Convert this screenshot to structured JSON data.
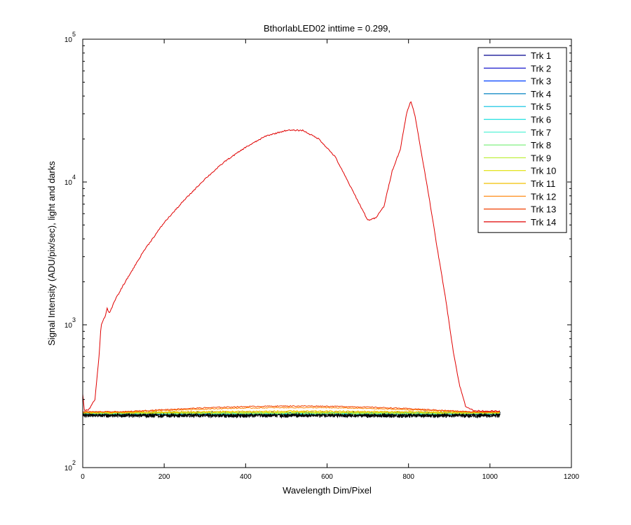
{
  "chart_data": {
    "type": "line",
    "title": "BthorlabLED02 inttime = 0.299,",
    "xlabel": "Wavelength Dim/Pixel",
    "ylabel": "Signal Intensity (ADU/pix/sec), light and darks",
    "xlim": [
      0,
      1200
    ],
    "ylim": [
      100,
      100000
    ],
    "yscale": "log",
    "grid": false,
    "legend_position": "top-right",
    "x_ticks": [
      0,
      200,
      400,
      600,
      800,
      1000,
      1200
    ],
    "x_tick_labels": [
      "0",
      "200",
      "400",
      "600",
      "800",
      "1000",
      "1200"
    ],
    "y_ticks": [
      {
        "value": 100,
        "base": "10",
        "exp": "2"
      },
      {
        "value": 1000,
        "base": "10",
        "exp": "3"
      },
      {
        "value": 10000,
        "base": "10",
        "exp": "4"
      },
      {
        "value": 100000,
        "base": "10",
        "exp": "5"
      }
    ],
    "series": [
      {
        "name": "Trk 1",
        "color": "#00008f",
        "baseline": 240,
        "bump": 0,
        "noise": 8
      },
      {
        "name": "Trk 2",
        "color": "#0000c8",
        "baseline": 240,
        "bump": 0,
        "noise": 8
      },
      {
        "name": "Trk 3",
        "color": "#0040ff",
        "baseline": 240,
        "bump": 0,
        "noise": 8
      },
      {
        "name": "Trk 4",
        "color": "#0080c0",
        "baseline": 240,
        "bump": 0,
        "noise": 8
      },
      {
        "name": "Trk 5",
        "color": "#00c0e0",
        "baseline": 240,
        "bump": 0,
        "noise": 8
      },
      {
        "name": "Trk 6",
        "color": "#20e0e0",
        "baseline": 240,
        "bump": 0,
        "noise": 8
      },
      {
        "name": "Trk 7",
        "color": "#40f0d0",
        "baseline": 240,
        "bump": 0,
        "noise": 8
      },
      {
        "name": "Trk 8",
        "color": "#80f080",
        "baseline": 240,
        "bump": 0,
        "noise": 8
      },
      {
        "name": "Trk 9",
        "color": "#c0f040",
        "baseline": 241,
        "bump": 0,
        "noise": 7
      },
      {
        "name": "Trk 10",
        "color": "#e0e000",
        "baseline": 242,
        "bump": 2,
        "noise": 6
      },
      {
        "name": "Trk 11",
        "color": "#f0c000",
        "baseline": 243,
        "bump": 5,
        "noise": 6
      },
      {
        "name": "Trk 12",
        "color": "#ff8000",
        "baseline": 245,
        "bump": 18,
        "noise": 4
      },
      {
        "name": "Trk 13",
        "color": "#f04000",
        "baseline": 246,
        "bump": 24,
        "noise": 4
      },
      {
        "name": "Trk 14",
        "color": "#e00000",
        "baseline": 248,
        "bump": 0,
        "noise": 3,
        "points": [
          [
            0,
            330
          ],
          [
            4,
            250
          ],
          [
            15,
            255
          ],
          [
            30,
            300
          ],
          [
            40,
            600
          ],
          [
            45,
            1000
          ],
          [
            55,
            1150
          ],
          [
            60,
            1300
          ],
          [
            65,
            1200
          ],
          [
            80,
            1500
          ],
          [
            100,
            1900
          ],
          [
            150,
            3300
          ],
          [
            200,
            5200
          ],
          [
            250,
            7500
          ],
          [
            300,
            10500
          ],
          [
            350,
            14000
          ],
          [
            400,
            17500
          ],
          [
            450,
            21000
          ],
          [
            500,
            23000
          ],
          [
            540,
            23000
          ],
          [
            580,
            20000
          ],
          [
            620,
            15000
          ],
          [
            660,
            9000
          ],
          [
            700,
            5400
          ],
          [
            720,
            5600
          ],
          [
            740,
            6800
          ],
          [
            760,
            12000
          ],
          [
            780,
            17000
          ],
          [
            795,
            30000
          ],
          [
            805,
            37000
          ],
          [
            815,
            30000
          ],
          [
            830,
            17000
          ],
          [
            850,
            8000
          ],
          [
            870,
            3500
          ],
          [
            890,
            1600
          ],
          [
            910,
            650
          ],
          [
            925,
            380
          ],
          [
            940,
            270
          ],
          [
            960,
            250
          ],
          [
            1025,
            248
          ]
        ]
      }
    ],
    "dark_baseline": 235,
    "x_data_max": 1025
  }
}
